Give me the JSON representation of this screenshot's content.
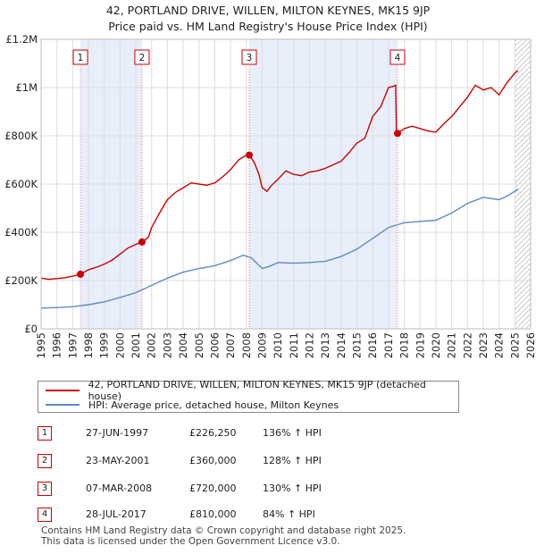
{
  "title_line1": "42, PORTLAND DRIVE, WILLEN, MILTON KEYNES, MK15 9JP",
  "title_line2": "Price paid vs. HM Land Registry's House Price Index (HPI)",
  "chart_data": {
    "type": "line",
    "xlim": [
      1995,
      2026
    ],
    "ylim": [
      0,
      1200000
    ],
    "y_ticks": [
      {
        "v": 0,
        "label": "£0"
      },
      {
        "v": 200000,
        "label": "£200K"
      },
      {
        "v": 400000,
        "label": "£400K"
      },
      {
        "v": 600000,
        "label": "£600K"
      },
      {
        "v": 800000,
        "label": "£800K"
      },
      {
        "v": 1000000,
        "label": "£1M"
      },
      {
        "v": 1200000,
        "label": "£1.2M"
      }
    ],
    "x_ticks": [
      "1995",
      "1996",
      "1997",
      "1998",
      "1999",
      "2000",
      "2001",
      "2002",
      "2003",
      "2004",
      "2005",
      "2006",
      "2007",
      "2008",
      "2009",
      "2010",
      "2011",
      "2012",
      "2013",
      "2014",
      "2015",
      "2016",
      "2017",
      "2018",
      "2019",
      "2020",
      "2021",
      "2022",
      "2023",
      "2024",
      "2025",
      "2026"
    ],
    "shaded_ranges": [
      [
        1997.49,
        2001.39
      ],
      [
        2008.18,
        2017.57
      ]
    ],
    "hatched_from": 2025.0,
    "series": [
      {
        "name": "42, PORTLAND DRIVE, WILLEN, MILTON KEYNES, MK15 9JP (detached house)",
        "color": "#cc0000",
        "points": [
          [
            1995,
            210000
          ],
          [
            1995.5,
            205000
          ],
          [
            1996,
            208000
          ],
          [
            1996.5,
            212000
          ],
          [
            1997,
            218000
          ],
          [
            1997.49,
            226250
          ],
          [
            1998,
            245000
          ],
          [
            1998.5,
            255000
          ],
          [
            1999,
            268000
          ],
          [
            1999.5,
            285000
          ],
          [
            2000,
            310000
          ],
          [
            2000.5,
            335000
          ],
          [
            2001,
            350000
          ],
          [
            2001.39,
            360000
          ],
          [
            2001.8,
            380000
          ],
          [
            2002,
            420000
          ],
          [
            2002.5,
            480000
          ],
          [
            2003,
            535000
          ],
          [
            2003.5,
            565000
          ],
          [
            2004,
            585000
          ],
          [
            2004.5,
            605000
          ],
          [
            2005,
            600000
          ],
          [
            2005.5,
            595000
          ],
          [
            2006,
            605000
          ],
          [
            2006.5,
            630000
          ],
          [
            2007,
            660000
          ],
          [
            2007.5,
            700000
          ],
          [
            2008,
            720000
          ],
          [
            2008.18,
            720000
          ],
          [
            2008.5,
            690000
          ],
          [
            2008.8,
            640000
          ],
          [
            2009,
            585000
          ],
          [
            2009.3,
            570000
          ],
          [
            2009.6,
            595000
          ],
          [
            2010,
            620000
          ],
          [
            2010.5,
            655000
          ],
          [
            2011,
            640000
          ],
          [
            2011.5,
            635000
          ],
          [
            2012,
            650000
          ],
          [
            2012.5,
            655000
          ],
          [
            2013,
            665000
          ],
          [
            2013.5,
            680000
          ],
          [
            2014,
            695000
          ],
          [
            2014.5,
            730000
          ],
          [
            2015,
            770000
          ],
          [
            2015.5,
            790000
          ],
          [
            2016,
            880000
          ],
          [
            2016.5,
            920000
          ],
          [
            2017,
            1000000
          ],
          [
            2017.3,
            1005000
          ],
          [
            2017.45,
            1010000
          ],
          [
            2017.5,
            820000
          ],
          [
            2017.57,
            810000
          ],
          [
            2018,
            830000
          ],
          [
            2018.5,
            840000
          ],
          [
            2019,
            830000
          ],
          [
            2019.5,
            820000
          ],
          [
            2020,
            815000
          ],
          [
            2020.5,
            850000
          ],
          [
            2021,
            880000
          ],
          [
            2021.5,
            920000
          ],
          [
            2022,
            960000
          ],
          [
            2022.5,
            1010000
          ],
          [
            2023,
            990000
          ],
          [
            2023.5,
            1000000
          ],
          [
            2024,
            970000
          ],
          [
            2024.5,
            1020000
          ],
          [
            2025,
            1060000
          ],
          [
            2025.2,
            1070000
          ]
        ]
      },
      {
        "name": "HPI: Average price, detached house, Milton Keynes",
        "color": "#5b8cc4",
        "points": [
          [
            1995,
            86000
          ],
          [
            1996,
            88000
          ],
          [
            1997,
            92000
          ],
          [
            1998,
            100000
          ],
          [
            1999,
            112000
          ],
          [
            2000,
            130000
          ],
          [
            2001,
            150000
          ],
          [
            2002,
            180000
          ],
          [
            2003,
            210000
          ],
          [
            2004,
            235000
          ],
          [
            2005,
            250000
          ],
          [
            2006,
            262000
          ],
          [
            2007,
            283000
          ],
          [
            2007.8,
            305000
          ],
          [
            2008.3,
            295000
          ],
          [
            2009,
            250000
          ],
          [
            2009.5,
            260000
          ],
          [
            2010,
            275000
          ],
          [
            2011,
            272000
          ],
          [
            2012,
            275000
          ],
          [
            2013,
            280000
          ],
          [
            2014,
            300000
          ],
          [
            2015,
            330000
          ],
          [
            2016,
            375000
          ],
          [
            2017,
            420000
          ],
          [
            2018,
            440000
          ],
          [
            2019,
            445000
          ],
          [
            2020,
            450000
          ],
          [
            2021,
            480000
          ],
          [
            2022,
            520000
          ],
          [
            2023,
            545000
          ],
          [
            2024,
            535000
          ],
          [
            2024.5,
            550000
          ],
          [
            2025,
            570000
          ],
          [
            2025.2,
            580000
          ]
        ]
      }
    ],
    "markers": [
      {
        "label": "1",
        "x": 1997.49,
        "y": 226250
      },
      {
        "label": "2",
        "x": 2001.39,
        "y": 360000
      },
      {
        "label": "3",
        "x": 2008.18,
        "y": 720000
      },
      {
        "label": "4",
        "x": 2017.57,
        "y": 810000
      }
    ]
  },
  "legend": {
    "property": "42, PORTLAND DRIVE, WILLEN, MILTON KEYNES, MK15 9JP (detached house)",
    "hpi": "HPI: Average price, detached house, Milton Keynes",
    "property_color": "#cc0000",
    "hpi_color": "#5b8cc4"
  },
  "sales": [
    {
      "num": "1",
      "date": "27-JUN-1997",
      "price": "£226,250",
      "hpi": "136% ↑ HPI"
    },
    {
      "num": "2",
      "date": "23-MAY-2001",
      "price": "£360,000",
      "hpi": "128% ↑ HPI"
    },
    {
      "num": "3",
      "date": "07-MAR-2008",
      "price": "£720,000",
      "hpi": "130% ↑ HPI"
    },
    {
      "num": "4",
      "date": "28-JUL-2017",
      "price": "£810,000",
      "hpi": "84% ↑ HPI"
    }
  ],
  "footer_line1": "Contains HM Land Registry data © Crown copyright and database right 2025.",
  "footer_line2": "This data is licensed under the Open Government Licence v3.0."
}
